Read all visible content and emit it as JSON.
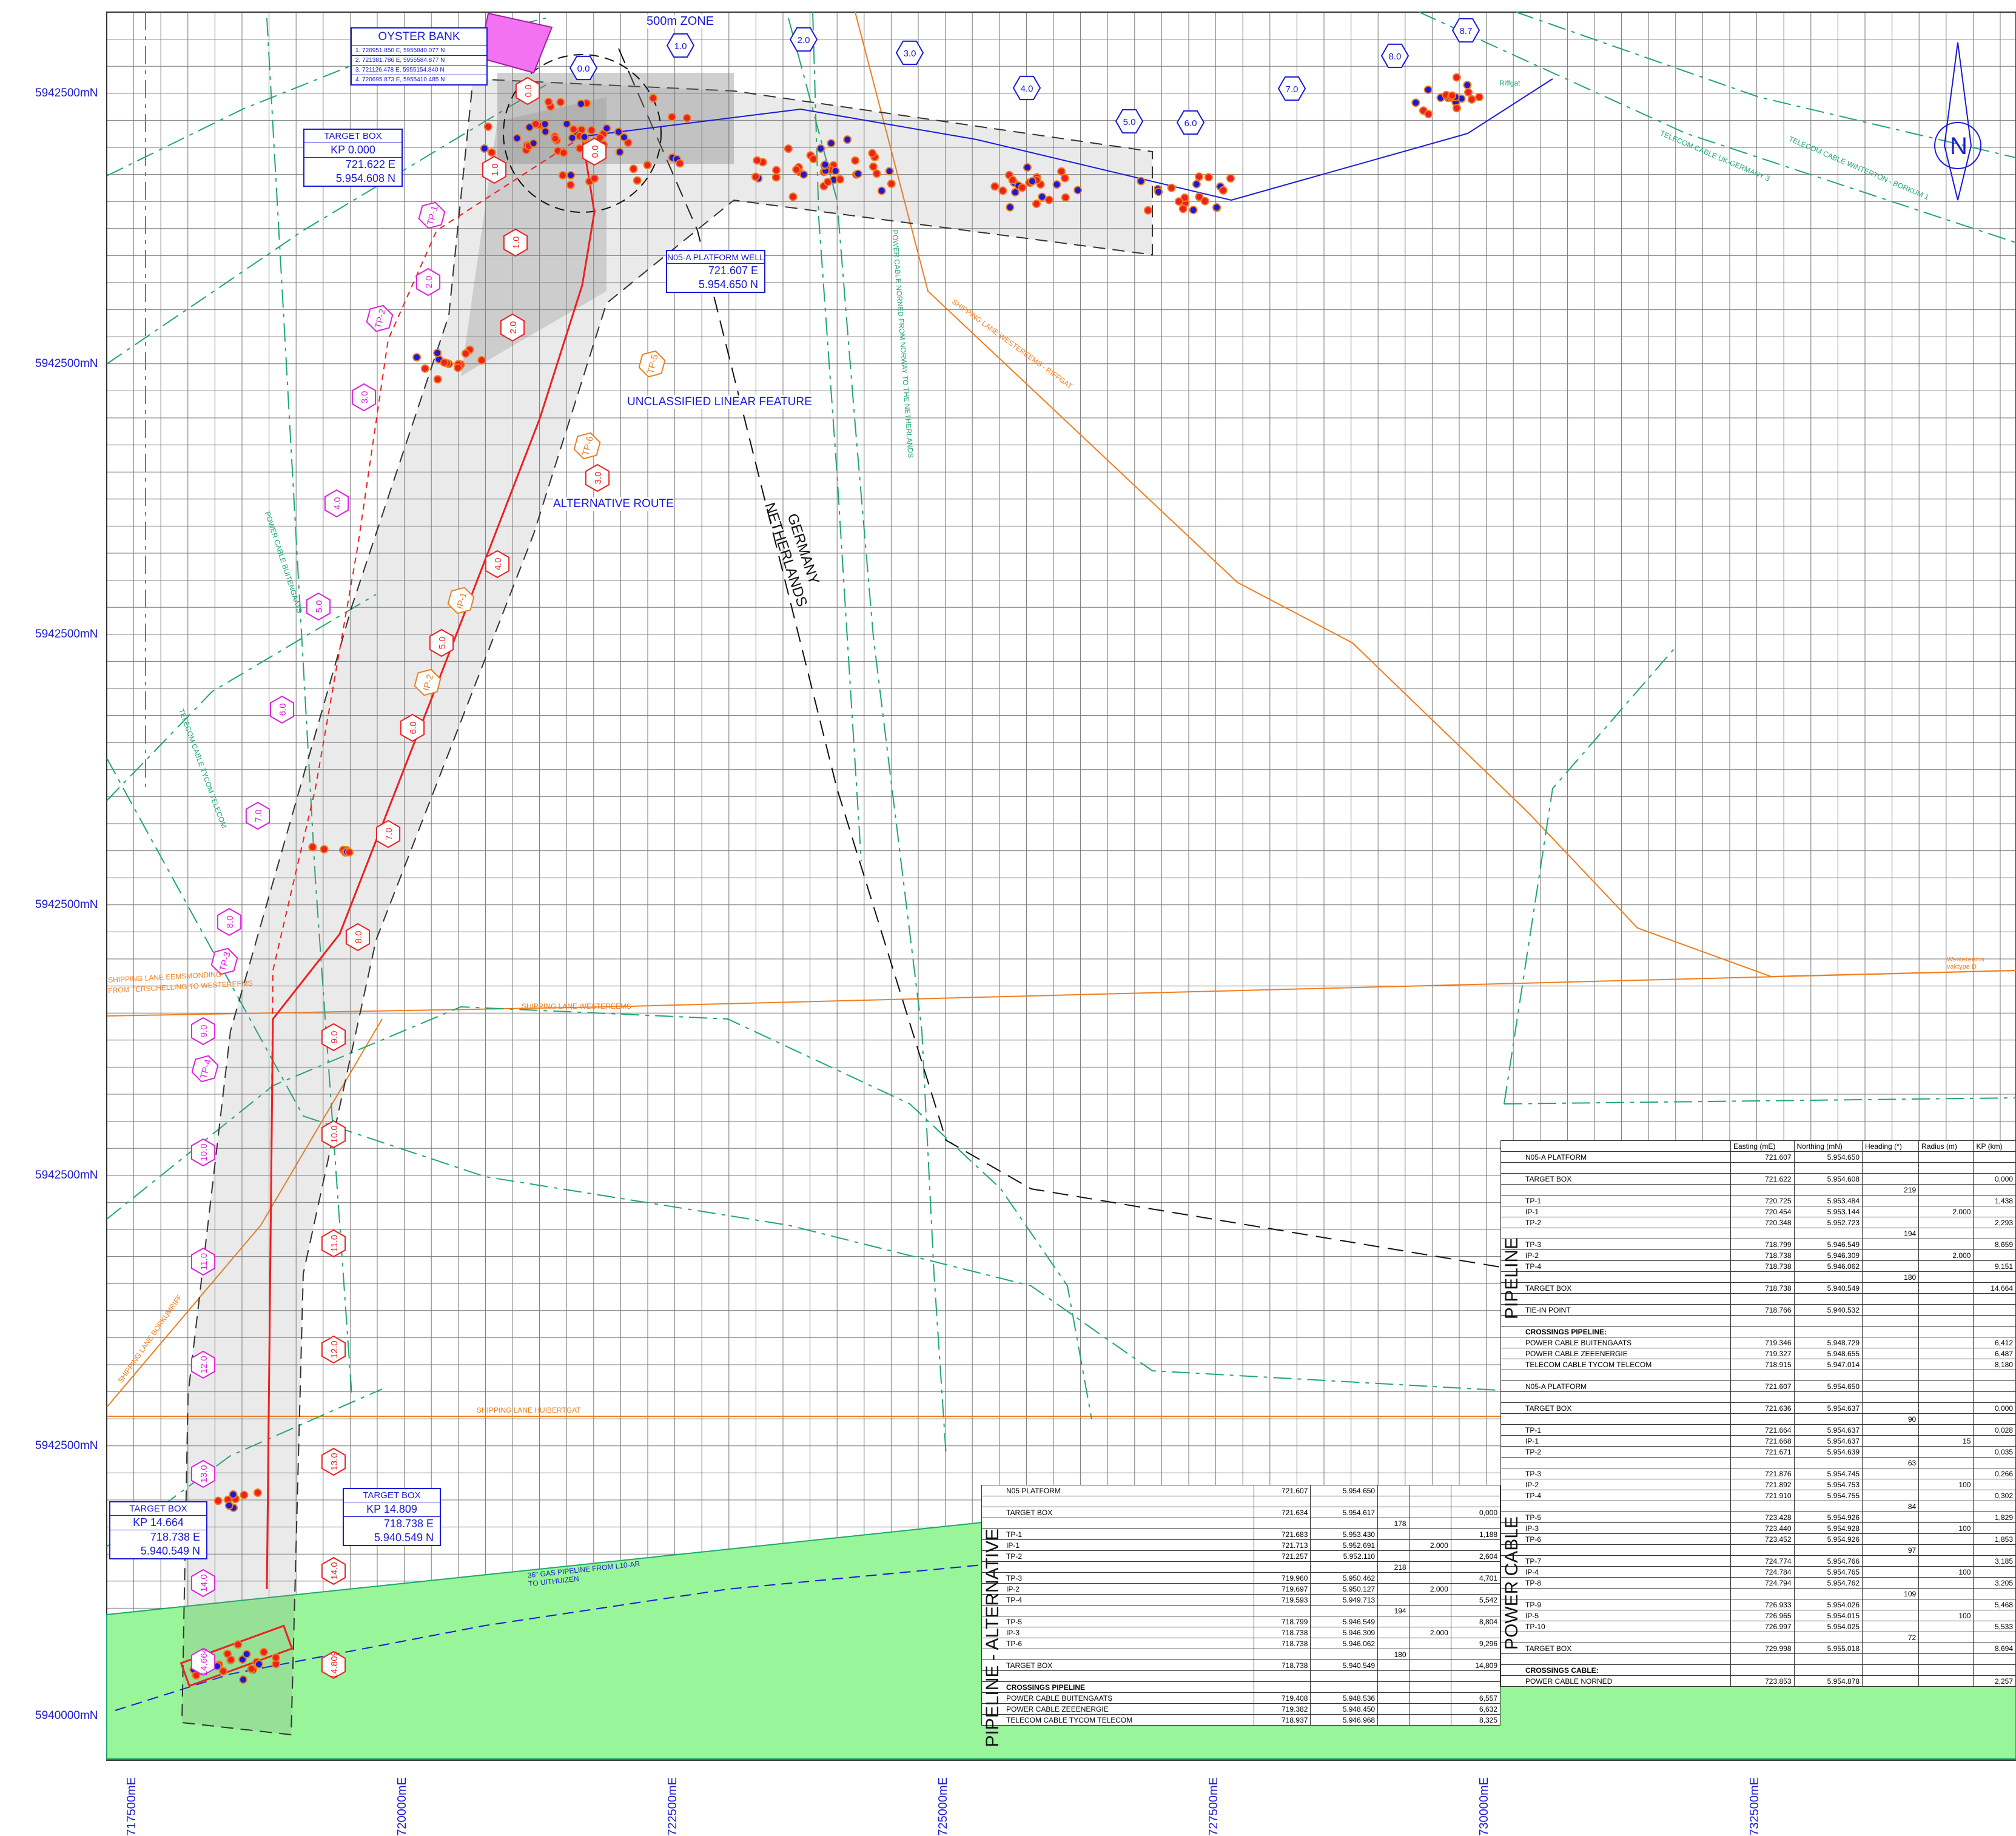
{
  "y_axis_labels": [
    "5942500mN",
    "5942500mN",
    "5942500mN",
    "5942500mN",
    "5942500mN",
    "5942500mN",
    "5940000mN"
  ],
  "x_axis_labels": [
    "717500mE",
    "720000mE",
    "722500mE",
    "725000mE",
    "727500mE",
    "730000mE",
    "732500mE"
  ],
  "oyster_bank": {
    "title": "OYSTER BANK",
    "rows": [
      "1. 720951.850 E, 5955840.077 N",
      "2. 721381.786 E, 5955584.877 N",
      "3. 721126.478 E, 5955154.840 N",
      "4. 720695.873 E, 5955410.485 N"
    ]
  },
  "zone_label": "500m ZONE",
  "target_box_top": {
    "title": "TARGET BOX",
    "kp": "KP 0.000",
    "e": "721.622 E",
    "n": "5.954.608 N"
  },
  "platform_well": {
    "title": "N05-A PLATFORM WELL",
    "e": "721.607 E",
    "n": "5.954.650 N"
  },
  "target_box_bl": {
    "title": "TARGET BOX",
    "kp": "KP 14.664",
    "e": "718.738 E",
    "n": "5.940.549 N"
  },
  "target_box_br": {
    "title": "TARGET BOX",
    "kp": "KP 14.809",
    "e": "718.738 E",
    "n": "5.940.549 N"
  },
  "callouts": {
    "linear": "UNCLASSIFIED LINEAR FEATURE",
    "alt": "ALTERNATIVE ROUTE"
  },
  "border": {
    "a": "GERMANY",
    "b": "NETHERLANDS"
  },
  "lanes": {
    "eemsmonding": "SHIPPING LANE EEMSMONDING",
    "eemsmonding2": "FROM TERSCHELLING TO WESTEREEMS",
    "westereems": "SHIPPING LANE WESTEREEMS",
    "westereems_riffgat": "SHIPPING LANE WESTEREEMS - RIFFGAT",
    "huibertgat": "SHIPPING LANE HUIBERTGAT",
    "borkumrif": "SHIPPING LANE BORKUMRIFF",
    "westereems_vaktype": "Westereems vaktype D"
  },
  "cables": {
    "norned": "POWER CABLE NORNED FROM NORWAY TO THE NETHERLANDS",
    "tycom": "TELECOM CABLE TYCOM TELECOM",
    "telecom_uk": "TELECOM CABLE UK-GERMANY 3",
    "telecom_winterton": "TELECOM CABLE WINTERTON - BORKUM 1",
    "buitengaats": "POWER CABLE BUITENGAATS",
    "gas": "36\" GAS PIPELINE FROM L10-AR TO UITHUIZEN",
    "riffgat": "Riffgat"
  },
  "route_kps_main": [
    "0.0",
    "1.0",
    "2.0",
    "3.0",
    "4.0",
    "5.0",
    "6.0",
    "7.0",
    "8.0",
    "9.0",
    "10.0",
    "11.0",
    "12.0",
    "13.0",
    "14.0",
    "14.809"
  ],
  "route_kps_alt": [
    "0.0",
    "1.0",
    "2.0",
    "3.0",
    "4.0",
    "5.0",
    "6.0",
    "7.0",
    "8.0",
    "9.0",
    "10.0",
    "11.0",
    "12.0",
    "13.0",
    "14.0",
    "14.664"
  ],
  "cable_kps": [
    "0.0",
    "1.0",
    "2.0",
    "3.0",
    "4.0",
    "5.0",
    "6.0",
    "7.0",
    "8.0",
    "8.7"
  ],
  "tp_labels": [
    "TP-1",
    "TP-2",
    "TP-3",
    "TP-4",
    "TP-5",
    "TP-6",
    "IP-1",
    "IP-2"
  ],
  "table_main": {
    "headers": [
      "",
      "Easting (mE)",
      "Northing (mN)",
      "Heading (°)",
      "Radius (m)",
      "KP (km)"
    ],
    "section_pipeline": "PIPELINE",
    "section_cable": "POWER CABLE",
    "rows": [
      [
        "N05-A PLATFORM",
        "721.607",
        "5.954.650",
        "",
        "",
        ""
      ],
      [
        "",
        "",
        "",
        "",
        "",
        ""
      ],
      [
        "TARGET BOX",
        "721.622",
        "5.954.608",
        "",
        "",
        "0,000"
      ],
      [
        "",
        "",
        "",
        "219",
        "",
        ""
      ],
      [
        "TP-1",
        "720.725",
        "5.953.484",
        "",
        "",
        "1,438"
      ],
      [
        "IP-1",
        "720.454",
        "5.953.144",
        "",
        "2.000",
        ""
      ],
      [
        "TP-2",
        "720.348",
        "5.952.723",
        "",
        "",
        "2,293"
      ],
      [
        "",
        "",
        "",
        "194",
        "",
        ""
      ],
      [
        "TP-3",
        "718.799",
        "5.946.549",
        "",
        "",
        "8,659"
      ],
      [
        "IP-2",
        "718.738",
        "5.946.309",
        "",
        "2.000",
        ""
      ],
      [
        "TP-4",
        "718.738",
        "5.946.062",
        "",
        "",
        "9,151"
      ],
      [
        "",
        "",
        "",
        "180",
        "",
        ""
      ],
      [
        "TARGET BOX",
        "718.738",
        "5.940.549",
        "",
        "",
        "14,664"
      ],
      [
        "",
        "",
        "",
        "",
        "",
        ""
      ],
      [
        "TIE-IN POINT",
        "718.766",
        "5.940.532",
        "",
        "",
        ""
      ],
      [
        "",
        "",
        "",
        "",
        "",
        ""
      ],
      [
        "CROSSINGS PIPELINE:",
        "",
        "",
        "",
        "",
        ""
      ],
      [
        "POWER CABLE BUITENGAATS",
        "719.346",
        "5.948.729",
        "",
        "",
        "6,412"
      ],
      [
        "POWER CABLE ZEEENERGIE",
        "719.327",
        "5.948.655",
        "",
        "",
        "6,487"
      ],
      [
        "TELECOM CABLE TYCOM TELECOM",
        "718.915",
        "5.947.014",
        "",
        "",
        "8,180"
      ],
      [
        "",
        "",
        "",
        "",
        "",
        ""
      ],
      [
        "N05-A PLATFORM",
        "721.607",
        "5.954.650",
        "",
        "",
        ""
      ],
      [
        "",
        "",
        "",
        "",
        "",
        ""
      ],
      [
        "TARGET BOX",
        "721.636",
        "5.954.637",
        "",
        "",
        "0,000"
      ],
      [
        "",
        "",
        "",
        "90",
        "",
        ""
      ],
      [
        "TP-1",
        "721.664",
        "5.954.637",
        "",
        "",
        "0,028"
      ],
      [
        "IP-1",
        "721.668",
        "5.954.637",
        "",
        "15",
        ""
      ],
      [
        "TP-2",
        "721.671",
        "5.954.639",
        "",
        "",
        "0,035"
      ],
      [
        "",
        "",
        "",
        "63",
        "",
        ""
      ],
      [
        "TP-3",
        "721.876",
        "5.954.745",
        "",
        "",
        "0,266"
      ],
      [
        "IP-2",
        "721.892",
        "5.954.753",
        "",
        "100",
        ""
      ],
      [
        "TP-4",
        "721.910",
        "5.954.755",
        "",
        "",
        "0,302"
      ],
      [
        "",
        "",
        "",
        "84",
        "",
        ""
      ],
      [
        "TP-5",
        "723.428",
        "5.954.926",
        "",
        "",
        "1,829"
      ],
      [
        "IP-3",
        "723.440",
        "5.954.928",
        "",
        "100",
        ""
      ],
      [
        "TP-6",
        "723.452",
        "5.954.926",
        "",
        "",
        "1,853"
      ],
      [
        "",
        "",
        "",
        "97",
        "",
        ""
      ],
      [
        "TP-7",
        "724.774",
        "5.954.766",
        "",
        "",
        "3,185"
      ],
      [
        "IP-4",
        "724.784",
        "5.954.765",
        "",
        "100",
        ""
      ],
      [
        "TP-8",
        "724.794",
        "5.954.762",
        "",
        "",
        "3,205"
      ],
      [
        "",
        "",
        "",
        "109",
        "",
        ""
      ],
      [
        "TP-9",
        "726.933",
        "5.954.026",
        "",
        "",
        "5,468"
      ],
      [
        "IP-5",
        "726.965",
        "5.954.015",
        "",
        "100",
        ""
      ],
      [
        "TP-10",
        "726.997",
        "5.954.025",
        "",
        "",
        "5,533"
      ],
      [
        "",
        "",
        "",
        "72",
        "",
        ""
      ],
      [
        "TARGET BOX",
        "729.998",
        "5.955.018",
        "",
        "",
        "8,694"
      ],
      [
        "",
        "",
        "",
        "",
        "",
        ""
      ],
      [
        "CROSSINGS CABLE:",
        "",
        "",
        "",
        "",
        ""
      ],
      [
        "POWER CABLE NORNED",
        "723.853",
        "5.954.878",
        "",
        "",
        "2,257"
      ]
    ]
  },
  "table_alt": {
    "section": "PIPELINE - ALTERNATIVE",
    "rows": [
      [
        "N05 PLATFORM",
        "721.607",
        "5.954.650",
        "",
        "",
        ""
      ],
      [
        "",
        "",
        "",
        "",
        "",
        ""
      ],
      [
        "TARGET BOX",
        "721.634",
        "5.954.617",
        "",
        "",
        "0,000"
      ],
      [
        "",
        "",
        "",
        "178",
        "",
        ""
      ],
      [
        "TP-1",
        "721.683",
        "5.953.430",
        "",
        "",
        "1,188"
      ],
      [
        "IP-1",
        "721.713",
        "5.952.691",
        "",
        "2.000",
        ""
      ],
      [
        "TP-2",
        "721.257",
        "5.952.110",
        "",
        "",
        "2,604"
      ],
      [
        "",
        "",
        "",
        "218",
        "",
        ""
      ],
      [
        "TP-3",
        "719.960",
        "5.950.462",
        "",
        "",
        "4,701"
      ],
      [
        "IP-2",
        "719.697",
        "5.950.127",
        "",
        "2.000",
        ""
      ],
      [
        "TP-4",
        "719.593",
        "5.949.713",
        "",
        "",
        "5,542"
      ],
      [
        "",
        "",
        "",
        "194",
        "",
        ""
      ],
      [
        "TP-5",
        "718.799",
        "5.946.549",
        "",
        "",
        "8,804"
      ],
      [
        "IP-3",
        "718.738",
        "5.946.309",
        "",
        "2.000",
        ""
      ],
      [
        "TP-6",
        "718.738",
        "5.946.062",
        "",
        "",
        "9,296"
      ],
      [
        "",
        "",
        "",
        "180",
        "",
        ""
      ],
      [
        "TARGET BOX",
        "718.738",
        "5.940.549",
        "",
        "",
        "14,809"
      ],
      [
        "",
        "",
        "",
        "",
        "",
        ""
      ],
      [
        "CROSSINGS PIPELINE",
        "",
        "",
        "",
        "",
        ""
      ],
      [
        "POWER CABLE BUITENGAATS",
        "719.408",
        "5.948.536",
        "",
        "",
        "6,557"
      ],
      [
        "POWER CABLE ZEEENERGIE",
        "719.382",
        "5.948.450",
        "",
        "",
        "6,632"
      ],
      [
        "TELECOM CABLE TYCOM TELECOM",
        "718.937",
        "5.946.968",
        "",
        "",
        "8,325"
      ]
    ]
  },
  "colors": {
    "blue": "#1a1ad8",
    "red": "#ee2020",
    "magenta": "#e020e0",
    "green": "#1ea870",
    "orange": "#f07e1e",
    "land": "#99f599"
  },
  "north_arrow": "N"
}
